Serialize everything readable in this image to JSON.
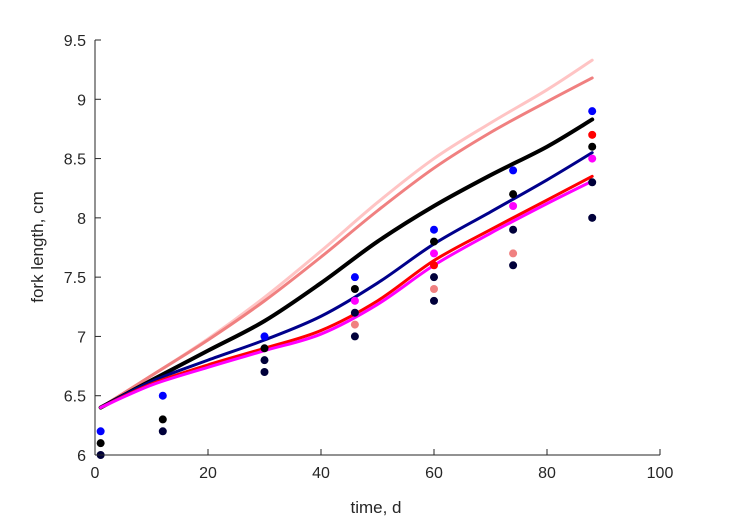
{
  "chart_data": {
    "type": "line",
    "title": "",
    "xlabel": "time, d",
    "ylabel": "fork length, cm",
    "xlim": [
      0,
      100
    ],
    "ylim": [
      6,
      9.5
    ],
    "grid": false,
    "legend": "none",
    "x_ticks": [
      0,
      20,
      40,
      60,
      80,
      100
    ],
    "x_tick_labels": [
      "0",
      "20",
      "40",
      "60",
      "80",
      "100"
    ],
    "y_ticks": [
      6,
      6.5,
      7,
      7.5,
      8,
      8.5,
      9,
      9.5
    ],
    "y_tick_labels": [
      "6",
      "6.5",
      "7",
      "7.5",
      "8",
      "8.5",
      "9",
      "9.5"
    ],
    "lines": [
      {
        "color": "#ffc4c4",
        "width": 3,
        "x": [
          1,
          10,
          20,
          30,
          40,
          50,
          60,
          70,
          80,
          88
        ],
        "y": [
          6.4,
          6.67,
          6.98,
          7.33,
          7.72,
          8.13,
          8.5,
          8.8,
          9.08,
          9.33
        ]
      },
      {
        "color": "#f08080",
        "width": 3,
        "x": [
          1,
          10,
          20,
          30,
          40,
          50,
          60,
          70,
          80,
          88
        ],
        "y": [
          6.4,
          6.67,
          6.97,
          7.3,
          7.67,
          8.06,
          8.42,
          8.72,
          8.98,
          9.18
        ]
      },
      {
        "color": "#000000",
        "width": 4,
        "x": [
          1,
          10,
          20,
          30,
          40,
          50,
          60,
          70,
          80,
          88
        ],
        "y": [
          6.4,
          6.63,
          6.88,
          7.13,
          7.45,
          7.8,
          8.1,
          8.36,
          8.6,
          8.83
        ]
      },
      {
        "color": "#00008b",
        "width": 3,
        "x": [
          1,
          10,
          20,
          30,
          40,
          50,
          60,
          70,
          80,
          88
        ],
        "y": [
          6.4,
          6.62,
          6.8,
          6.97,
          7.17,
          7.45,
          7.78,
          8.05,
          8.32,
          8.55
        ]
      },
      {
        "color": "#ff0000",
        "width": 3,
        "x": [
          1,
          10,
          20,
          30,
          40,
          50,
          60,
          70,
          80,
          88
        ],
        "y": [
          6.4,
          6.6,
          6.76,
          6.9,
          7.05,
          7.3,
          7.64,
          7.9,
          8.15,
          8.35
        ]
      },
      {
        "color": "#ff00ff",
        "width": 3,
        "x": [
          1,
          10,
          20,
          30,
          40,
          50,
          60,
          70,
          80,
          88
        ],
        "y": [
          6.4,
          6.59,
          6.74,
          6.88,
          7.02,
          7.27,
          7.6,
          7.87,
          8.12,
          8.31
        ]
      }
    ],
    "points": [
      {
        "x": 1,
        "y": 6.2,
        "color": "#0000ff"
      },
      {
        "x": 1,
        "y": 6.1,
        "color": "#000000"
      },
      {
        "x": 1,
        "y": 6.0,
        "color": "#00003a"
      },
      {
        "x": 12,
        "y": 6.5,
        "color": "#0000ff"
      },
      {
        "x": 12,
        "y": 6.3,
        "color": "#000000"
      },
      {
        "x": 12,
        "y": 6.2,
        "color": "#00003a"
      },
      {
        "x": 30,
        "y": 7.0,
        "color": "#0000ff"
      },
      {
        "x": 30,
        "y": 6.9,
        "color": "#000000"
      },
      {
        "x": 30,
        "y": 6.8,
        "color": "#00003a"
      },
      {
        "x": 30,
        "y": 6.7,
        "color": "#00003a"
      },
      {
        "x": 46,
        "y": 7.5,
        "color": "#0000ff"
      },
      {
        "x": 46,
        "y": 7.4,
        "color": "#000000"
      },
      {
        "x": 46,
        "y": 7.3,
        "color": "#ff00ff"
      },
      {
        "x": 46,
        "y": 7.2,
        "color": "#00003a"
      },
      {
        "x": 46,
        "y": 7.1,
        "color": "#f08080"
      },
      {
        "x": 46,
        "y": 7.0,
        "color": "#00003a"
      },
      {
        "x": 60,
        "y": 7.9,
        "color": "#0000ff"
      },
      {
        "x": 60,
        "y": 7.8,
        "color": "#000000"
      },
      {
        "x": 60,
        "y": 7.7,
        "color": "#ff00ff"
      },
      {
        "x": 60,
        "y": 7.6,
        "color": "#ff0000"
      },
      {
        "x": 60,
        "y": 7.5,
        "color": "#00003a"
      },
      {
        "x": 60,
        "y": 7.4,
        "color": "#f08080"
      },
      {
        "x": 60,
        "y": 7.3,
        "color": "#00003a"
      },
      {
        "x": 74,
        "y": 8.4,
        "color": "#0000ff"
      },
      {
        "x": 74,
        "y": 8.2,
        "color": "#000000"
      },
      {
        "x": 74,
        "y": 8.1,
        "color": "#ff00ff"
      },
      {
        "x": 74,
        "y": 7.9,
        "color": "#00003a"
      },
      {
        "x": 74,
        "y": 7.7,
        "color": "#f08080"
      },
      {
        "x": 74,
        "y": 7.6,
        "color": "#00003a"
      },
      {
        "x": 88,
        "y": 8.9,
        "color": "#0000ff"
      },
      {
        "x": 88,
        "y": 8.7,
        "color": "#ff0000"
      },
      {
        "x": 88,
        "y": 8.6,
        "color": "#000000"
      },
      {
        "x": 88,
        "y": 8.5,
        "color": "#ff00ff"
      },
      {
        "x": 88,
        "y": 8.3,
        "color": "#00003a"
      },
      {
        "x": 88,
        "y": 8.0,
        "color": "#00003a"
      }
    ]
  }
}
